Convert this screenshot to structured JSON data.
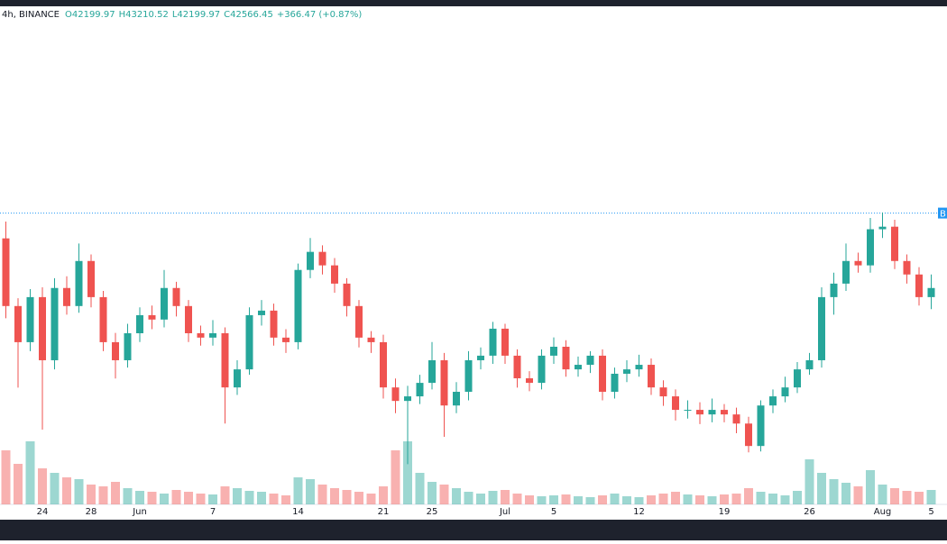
{
  "header": {
    "symbol": "4h, BINANCE",
    "open": "O42199.97",
    "high": "H43210.52",
    "low": "L42199.97",
    "close": "C42566.45",
    "change": "+366.47 (+0.87%)"
  },
  "chart_data": {
    "type": "candlestick",
    "categories": [
      null,
      null,
      null,
      "24",
      null,
      null,
      null,
      "28",
      null,
      null,
      null,
      "Jun",
      null,
      null,
      null,
      null,
      null,
      "7",
      null,
      null,
      null,
      null,
      null,
      null,
      "14",
      null,
      null,
      null,
      null,
      null,
      null,
      "21",
      null,
      null,
      null,
      "25",
      null,
      null,
      null,
      null,
      null,
      "Jul",
      null,
      null,
      null,
      "5",
      null,
      null,
      null,
      null,
      null,
      null,
      "12",
      null,
      null,
      null,
      null,
      null,
      null,
      "19",
      null,
      null,
      null,
      null,
      null,
      null,
      "26",
      null,
      null,
      null,
      null,
      null,
      "Aug",
      null,
      null,
      null,
      "5"
    ],
    "open": [
      41180,
      37470,
      35490,
      37960,
      34500,
      38460,
      37470,
      39940,
      37960,
      35490,
      34500,
      35980,
      36970,
      36730,
      38460,
      37470,
      35980,
      35740,
      35980,
      33010,
      34000,
      36970,
      37220,
      35740,
      35490,
      39450,
      40440,
      39700,
      38700,
      37470,
      35740,
      35490,
      33010,
      32270,
      32520,
      33260,
      34500,
      32020,
      32770,
      34500,
      34750,
      36230,
      34750,
      33510,
      33260,
      34750,
      35240,
      34000,
      34250,
      34750,
      32770,
      33760,
      34000,
      34250,
      33010,
      32520,
      31780,
      31780,
      31530,
      31780,
      31530,
      31030,
      29800,
      32020,
      32520,
      33010,
      34000,
      34500,
      37960,
      38700,
      39940,
      39700,
      41680,
      41820,
      39940,
      39200,
      37960
    ],
    "high": [
      42100,
      37900,
      38400,
      38500,
      39000,
      39100,
      40900,
      40300,
      38300,
      36000,
      36500,
      37400,
      37500,
      39450,
      38800,
      37800,
      36400,
      36700,
      36300,
      34500,
      37400,
      37800,
      37600,
      36200,
      39800,
      41200,
      40800,
      40100,
      39000,
      37800,
      36100,
      35900,
      33500,
      33100,
      33700,
      35500,
      34900,
      33300,
      35000,
      35200,
      36600,
      36500,
      35100,
      33900,
      35100,
      35750,
      35600,
      34700,
      35000,
      35100,
      34100,
      34500,
      34800,
      34600,
      33400,
      32900,
      32300,
      32200,
      32400,
      32100,
      31900,
      31400,
      32300,
      32900,
      33600,
      34400,
      34900,
      38500,
      39300,
      40900,
      40400,
      42300,
      42600,
      42200,
      40300,
      39600,
      39200
    ],
    "low": [
      36800,
      33000,
      35000,
      30700,
      34000,
      37000,
      37100,
      37400,
      35000,
      33500,
      34100,
      35500,
      36200,
      36300,
      36900,
      35500,
      35300,
      35300,
      31030,
      32600,
      33700,
      36400,
      35300,
      34900,
      35100,
      39000,
      39200,
      38200,
      36900,
      35200,
      34900,
      32400,
      31600,
      28800,
      32100,
      32900,
      30300,
      31600,
      32300,
      34000,
      34300,
      34300,
      33000,
      32800,
      32900,
      34300,
      33600,
      33600,
      33800,
      32300,
      32400,
      33300,
      33600,
      32600,
      32000,
      31200,
      31300,
      31000,
      31100,
      31100,
      30500,
      29450,
      29500,
      31600,
      32200,
      32700,
      33700,
      34100,
      37000,
      38300,
      39300,
      39300,
      41200,
      39500,
      38700,
      37500,
      37300
    ],
    "close": [
      37470,
      35490,
      37960,
      34500,
      38460,
      37470,
      39940,
      37960,
      35490,
      34500,
      35980,
      36970,
      36730,
      38460,
      37470,
      35980,
      35740,
      35980,
      33010,
      34000,
      36970,
      37220,
      35740,
      35490,
      39450,
      40440,
      39700,
      38700,
      37470,
      35740,
      35490,
      33010,
      32270,
      32520,
      33260,
      34500,
      32020,
      32770,
      34500,
      34750,
      36230,
      34750,
      33510,
      33260,
      34750,
      35240,
      34000,
      34250,
      34750,
      32770,
      33760,
      34000,
      34250,
      33010,
      32520,
      31780,
      31780,
      31530,
      31780,
      31530,
      31030,
      29800,
      32020,
      32520,
      33010,
      34000,
      34500,
      37960,
      38700,
      39940,
      39700,
      41680,
      41820,
      39940,
      39200,
      37960,
      38460
    ],
    "volume": [
      60,
      45,
      70,
      40,
      35,
      30,
      28,
      22,
      20,
      25,
      18,
      15,
      14,
      12,
      16,
      14,
      12,
      11,
      20,
      18,
      15,
      14,
      12,
      10,
      30,
      28,
      22,
      18,
      16,
      14,
      12,
      20,
      60,
      70,
      35,
      25,
      22,
      18,
      14,
      12,
      15,
      16,
      12,
      10,
      9,
      10,
      11,
      9,
      8,
      10,
      12,
      9,
      8,
      10,
      12,
      14,
      11,
      10,
      9,
      11,
      12,
      18,
      14,
      12,
      10,
      15,
      50,
      35,
      28,
      24,
      20,
      38,
      22,
      18,
      15,
      14,
      16
    ],
    "ylim": [
      26600,
      53900
    ],
    "vlim": [
      0,
      100
    ],
    "up_color": "#26a69a",
    "down_color": "#ef5350",
    "price_line": {
      "value": 42566.45,
      "label": "B"
    }
  }
}
